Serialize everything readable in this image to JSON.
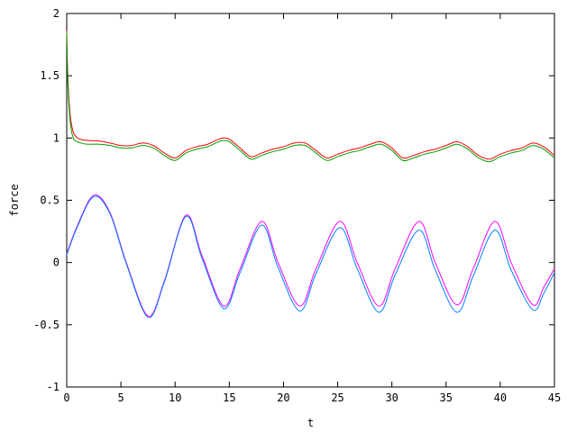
{
  "chart_data": {
    "type": "line",
    "title": "",
    "xlabel": "t",
    "ylabel": "force",
    "xlim": [
      0,
      45
    ],
    "ylim": [
      -1,
      2
    ],
    "xticks": [
      0,
      5,
      10,
      15,
      20,
      25,
      30,
      35,
      40,
      45
    ],
    "yticks": [
      -1,
      -0.5,
      0,
      0.5,
      1,
      1.5,
      2
    ],
    "xtick_labels": [
      "0",
      "5",
      "10",
      "15",
      "20",
      "25",
      "30",
      "35",
      "40",
      "45"
    ],
    "ytick_labels": [
      "-1",
      "-0.5",
      "0",
      "0.5",
      "1",
      "1.5",
      "2"
    ],
    "grid": false,
    "legend": "none",
    "series": [
      {
        "color": "#ff0000",
        "x": [
          0,
          0.1,
          0.3,
          0.6,
          1,
          1.5,
          2,
          3,
          4,
          5,
          6,
          7,
          8,
          9,
          10,
          11,
          12,
          13,
          14,
          14.5,
          15,
          16,
          17,
          18,
          19,
          20,
          21,
          22,
          23,
          24,
          25,
          26,
          27,
          28,
          29,
          30,
          31,
          32,
          33,
          34,
          35,
          36,
          37,
          38,
          39,
          40,
          41,
          42,
          43,
          44,
          45
        ],
        "y": [
          1.86,
          1.5,
          1.2,
          1.05,
          1.0,
          0.985,
          0.98,
          0.975,
          0.96,
          0.94,
          0.94,
          0.96,
          0.94,
          0.88,
          0.84,
          0.9,
          0.93,
          0.95,
          0.99,
          1.0,
          0.99,
          0.92,
          0.85,
          0.88,
          0.91,
          0.93,
          0.96,
          0.96,
          0.9,
          0.84,
          0.87,
          0.9,
          0.92,
          0.95,
          0.97,
          0.92,
          0.84,
          0.86,
          0.89,
          0.91,
          0.94,
          0.97,
          0.93,
          0.86,
          0.83,
          0.87,
          0.9,
          0.92,
          0.96,
          0.93,
          0.86
        ]
      },
      {
        "color": "#00a000",
        "x": [
          0,
          0.1,
          0.3,
          0.6,
          1,
          1.5,
          2,
          3,
          4,
          5,
          6,
          7,
          8,
          9,
          10,
          11,
          12,
          13,
          14,
          14.5,
          15,
          16,
          17,
          18,
          19,
          20,
          21,
          22,
          23,
          24,
          25,
          26,
          27,
          28,
          29,
          30,
          31,
          32,
          33,
          34,
          35,
          36,
          37,
          38,
          39,
          40,
          41,
          42,
          43,
          44,
          45
        ],
        "y": [
          1.85,
          1.45,
          1.15,
          1.0,
          0.97,
          0.955,
          0.95,
          0.95,
          0.94,
          0.92,
          0.92,
          0.94,
          0.92,
          0.86,
          0.82,
          0.88,
          0.91,
          0.93,
          0.97,
          0.98,
          0.97,
          0.9,
          0.83,
          0.86,
          0.89,
          0.91,
          0.94,
          0.94,
          0.88,
          0.82,
          0.85,
          0.88,
          0.9,
          0.93,
          0.95,
          0.9,
          0.82,
          0.84,
          0.87,
          0.89,
          0.92,
          0.95,
          0.91,
          0.84,
          0.81,
          0.85,
          0.88,
          0.9,
          0.94,
          0.91,
          0.84
        ]
      },
      {
        "color": "#ff00ff",
        "x": [
          0,
          1,
          2.5,
          4,
          5.5,
          7.5,
          9,
          11,
          12.5,
          14.5,
          16,
          18,
          19.5,
          21.5,
          23,
          25.2,
          26.8,
          28.8,
          30.3,
          32.5,
          34,
          36,
          37.5,
          39.5,
          41,
          43,
          44,
          45
        ],
        "y": [
          0.07,
          0.3,
          0.54,
          0.4,
          0.0,
          -0.43,
          -0.15,
          0.38,
          0.05,
          -0.35,
          -0.05,
          0.33,
          0.0,
          -0.35,
          -0.05,
          0.33,
          0.0,
          -0.35,
          -0.05,
          0.33,
          0.0,
          -0.34,
          -0.05,
          0.33,
          0.0,
          -0.34,
          -0.2,
          -0.05
        ]
      },
      {
        "color": "#0080ff",
        "x": [
          0,
          1,
          2.5,
          4,
          5.5,
          7.5,
          9,
          11,
          12.5,
          14.5,
          16,
          18,
          19.5,
          21.5,
          23,
          25.2,
          26.8,
          28.8,
          30.3,
          32.5,
          34,
          36,
          37.5,
          39.5,
          41,
          43,
          44,
          45
        ],
        "y": [
          0.06,
          0.29,
          0.53,
          0.39,
          -0.01,
          -0.44,
          -0.16,
          0.37,
          0.03,
          -0.37,
          -0.08,
          0.3,
          -0.04,
          -0.39,
          -0.09,
          0.28,
          -0.05,
          -0.4,
          -0.1,
          0.26,
          -0.06,
          -0.4,
          -0.11,
          0.26,
          -0.06,
          -0.38,
          -0.25,
          -0.08
        ]
      }
    ]
  }
}
